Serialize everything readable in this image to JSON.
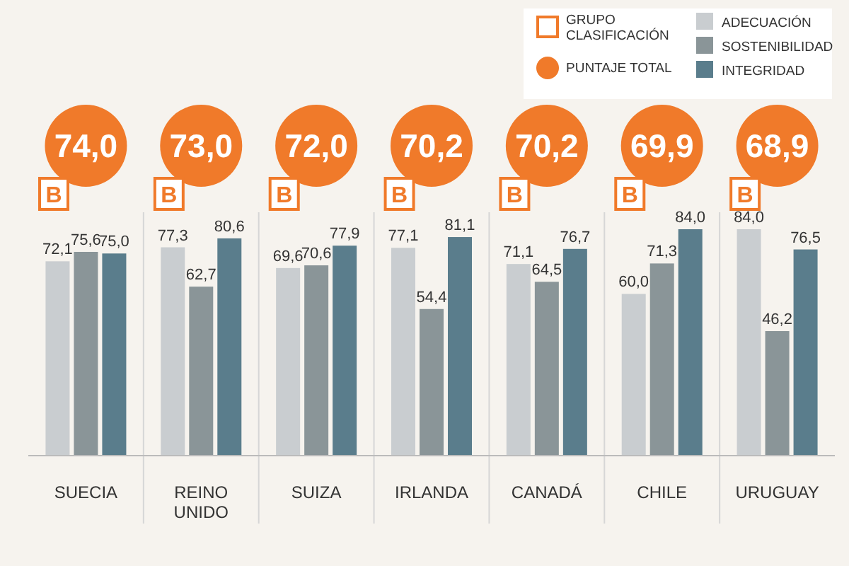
{
  "chart_data": {
    "type": "bar",
    "categories": [
      "SUECIA",
      "REINO UNIDO",
      "SUIZA",
      "IRLANDA",
      "CANADÁ",
      "CHILE",
      "URUGUAY"
    ],
    "series": [
      {
        "name": "ADECUACIÓN",
        "color": "#c9cdd0",
        "values": [
          72.1,
          77.3,
          69.6,
          77.1,
          71.1,
          60.0,
          84.0
        ],
        "value_labels": [
          "72,1",
          "77,3",
          "69,6",
          "77,1",
          "71,1",
          "60,0",
          "84,0"
        ]
      },
      {
        "name": "SOSTENIBILIDAD",
        "color": "#8a9598",
        "values": [
          75.6,
          62.7,
          70.6,
          54.4,
          64.5,
          71.3,
          46.2
        ],
        "value_labels": [
          "75,6",
          "62,7",
          "70,6",
          "54,4",
          "64,5",
          "71,3",
          "46,2"
        ]
      },
      {
        "name": "INTEGRIDAD",
        "color": "#5a7d8c",
        "values": [
          75.0,
          80.6,
          77.9,
          81.1,
          76.7,
          84.0,
          76.5
        ],
        "value_labels": [
          "75,0",
          "80,6",
          "77,9",
          "81,1",
          "76,7",
          "84,0",
          "76,5"
        ]
      }
    ],
    "legend": "top right",
    "annotations": [
      "GRUPO CLASIFICACIÓN",
      "PUNTAJE TOTAL",
      "74,0",
      "73,0",
      "72,0",
      "70,2",
      "70,2",
      "69,9",
      "68,9",
      "B",
      "B",
      "B",
      "B",
      "B",
      "B",
      "B"
    ]
  }
}
